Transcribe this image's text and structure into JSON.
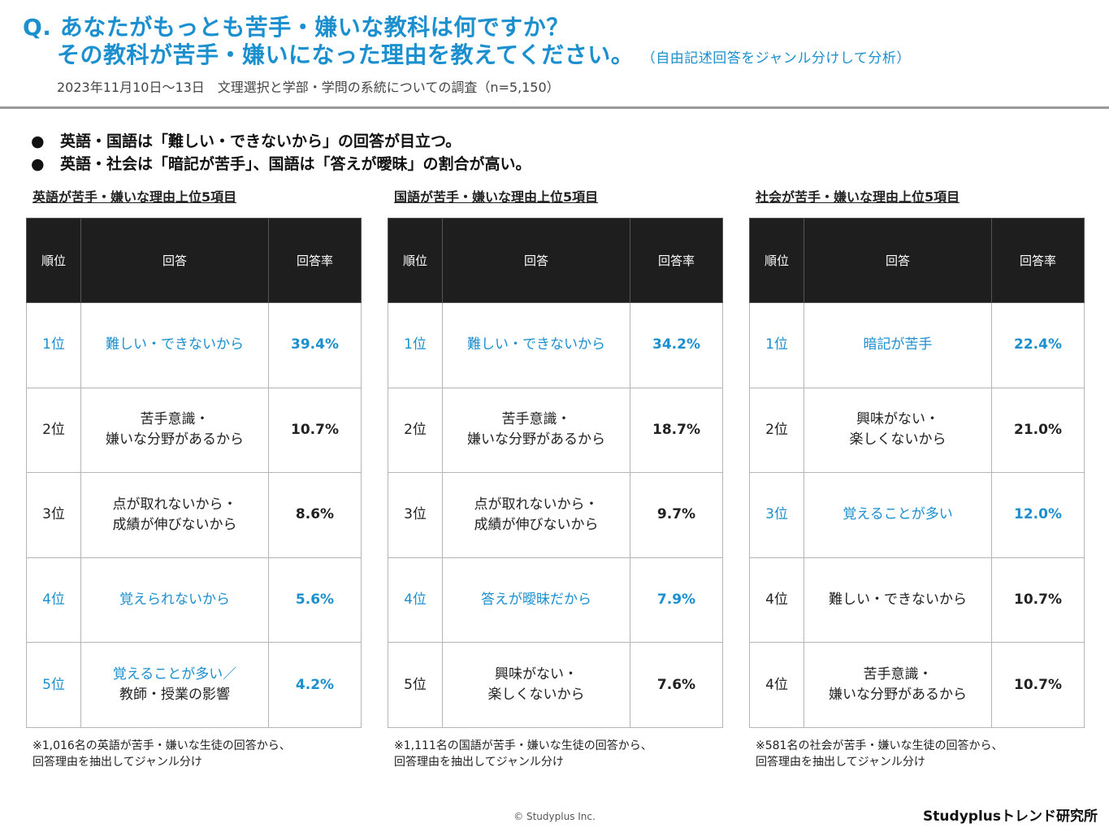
{
  "header": {
    "question_line1": "Q. あなたがもっとも苦手・嫌いな教科は何ですか？",
    "question_line2": "その教科が苦手・嫌いになった理由を教えてください。",
    "question_note": "（自由記述回答をジャンル分けして分析）",
    "survey_info": "2023年11月10日～13日　文理選択と学部・学問の系統についての調査（n=5,150）"
  },
  "bullets": [
    "英語・国語は「難しい・できないから」の回答が目立つ。",
    "英語・社会は「暗記が苦手」、国語は「答えが曖昧」の割合が高い。"
  ],
  "bullet_symbol": "●",
  "columns": {
    "rank": "順位",
    "answer": "回答",
    "rate": "回答率"
  },
  "colors": {
    "accent": "#1c8fcf",
    "header_bg": "#1e1e1e"
  },
  "panels": [
    {
      "title": "英語が苦手・嫌いな理由上位5項目",
      "rows": [
        {
          "rank": "1位",
          "answer_line1": "難しい・できないから",
          "answer_line2": "",
          "rate": "39.4%",
          "highlight": true
        },
        {
          "rank": "2位",
          "answer_line1": "苦手意識・",
          "answer_line2": "嫌いな分野があるから",
          "rate": "10.7%",
          "highlight": false
        },
        {
          "rank": "3位",
          "answer_line1": "点が取れないから・",
          "answer_line2": "成績が伸びないから",
          "rate": "8.6%",
          "highlight": false
        },
        {
          "rank": "4位",
          "answer_line1": "覚えられないから",
          "answer_line2": "",
          "rate": "5.6%",
          "highlight": true
        },
        {
          "rank": "5位",
          "answer_line1": "覚えることが多い／",
          "answer_line2": "教師・授業の影響",
          "rate": "4.2%",
          "highlight": true,
          "line2_plain": true
        }
      ],
      "footnote_line1": "※1,016名の英語が苦手・嫌いな生徒の回答から、",
      "footnote_line2": "回答理由を抽出してジャンル分け"
    },
    {
      "title": "国語が苦手・嫌いな理由上位5項目",
      "rows": [
        {
          "rank": "1位",
          "answer_line1": "難しい・できないから",
          "answer_line2": "",
          "rate": "34.2%",
          "highlight": true
        },
        {
          "rank": "2位",
          "answer_line1": "苦手意識・",
          "answer_line2": "嫌いな分野があるから",
          "rate": "18.7%",
          "highlight": false
        },
        {
          "rank": "3位",
          "answer_line1": "点が取れないから・",
          "answer_line2": "成績が伸びないから",
          "rate": "9.7%",
          "highlight": false
        },
        {
          "rank": "4位",
          "answer_line1": "答えが曖昧だから",
          "answer_line2": "",
          "rate": "7.9%",
          "highlight": true
        },
        {
          "rank": "5位",
          "answer_line1": "興味がない・",
          "answer_line2": "楽しくないから",
          "rate": "7.6%",
          "highlight": false
        }
      ],
      "footnote_line1": "※1,111名の国語が苦手・嫌いな生徒の回答から、",
      "footnote_line2": "回答理由を抽出してジャンル分け"
    },
    {
      "title": "社会が苦手・嫌いな理由上位5項目",
      "rows": [
        {
          "rank": "1位",
          "answer_line1": "暗記が苦手",
          "answer_line2": "",
          "rate": "22.4%",
          "highlight": true
        },
        {
          "rank": "2位",
          "answer_line1": "興味がない・",
          "answer_line2": "楽しくないから",
          "rate": "21.0%",
          "highlight": false
        },
        {
          "rank": "3位",
          "answer_line1": "覚えることが多い",
          "answer_line2": "",
          "rate": "12.0%",
          "highlight": true
        },
        {
          "rank": "4位",
          "answer_line1": "難しい・できないから",
          "answer_line2": "",
          "rate": "10.7%",
          "highlight": false
        },
        {
          "rank": "4位",
          "answer_line1": "苦手意識・",
          "answer_line2": "嫌いな分野があるから",
          "rate": "10.7%",
          "highlight": false
        }
      ],
      "footnote_line1": "※581名の社会が苦手・嫌いな生徒の回答から、",
      "footnote_line2": "回答理由を抽出してジャンル分け"
    }
  ],
  "footer": {
    "copyright": "© Studyplus Inc.",
    "brand": "Studyplusトレンド研究所"
  }
}
